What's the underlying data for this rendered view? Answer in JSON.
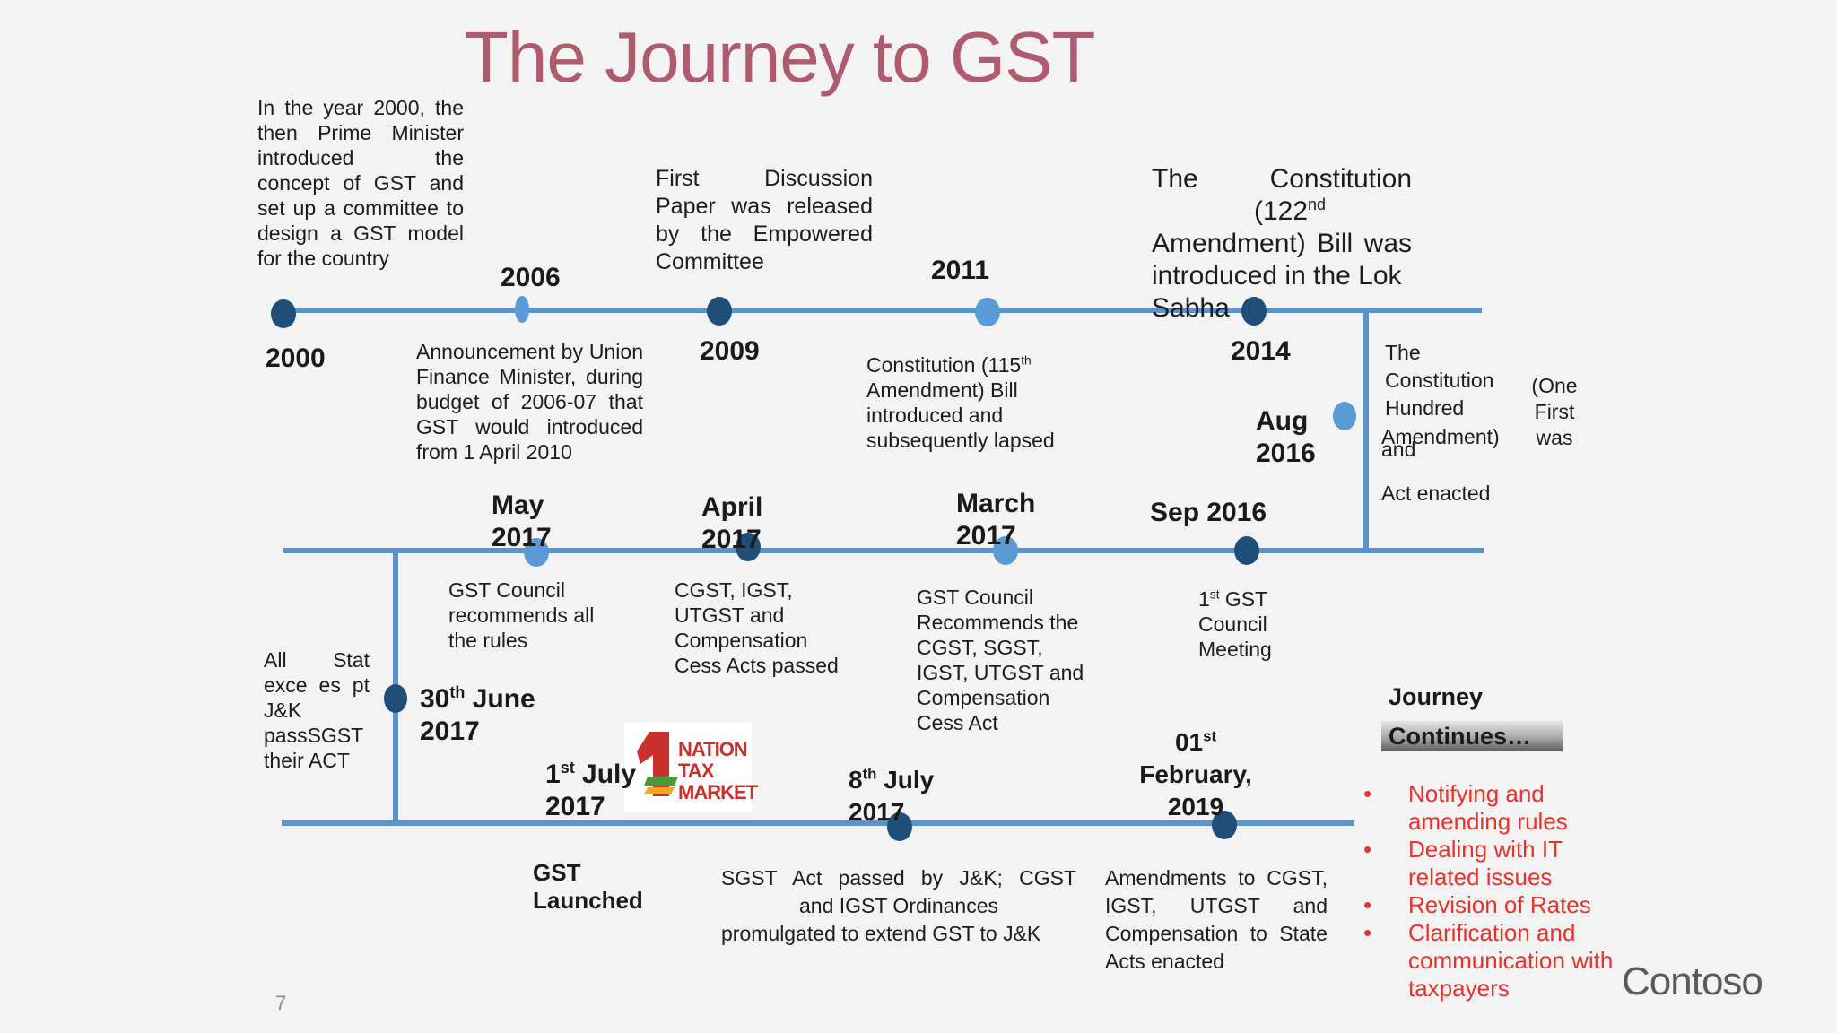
{
  "title": "The Journey to GST",
  "page_number": "7",
  "logo": "Contoso",
  "event_logo_text": [
    "NATION",
    "TAX",
    "MARKET"
  ],
  "colors": {
    "line": "#5b93cf",
    "dot_dark": "#1f4e79",
    "dot_light": "#5b9bd5",
    "title": "#b05a6e",
    "bullet": "#e8322a"
  },
  "row1": {
    "d2000": "2000",
    "d2006": "2006",
    "d2009": "2009",
    "d2011": "2011",
    "d2014": "2014",
    "desc2000": "In the year 2000, the then Prime Minister introduced the concept of GST and set up a committee to design a GST model for the country",
    "desc2006": "Announcement by Union Finance Minister, during budget of 2006-07 that GST would introduced from 1 April 2010",
    "desc2009": "First Discussion Paper was released by the Empowered Committee",
    "desc2011": "Constitution (115th Amendment) Bill introduced and subsequently lapsed",
    "desc2014": "The Constitution (122nd Amendment) Bill was introduced in the Lok Sabha",
    "aug2016_date": "Aug 2016",
    "aug2016_desc_a": "The Constitution Hundred",
    "aug2016_desc_b": "(One First was",
    "aug2016_desc_c": "Amendment) and",
    "aug2016_desc_d": "Act enacted"
  },
  "row2": {
    "may2017": "May 2017",
    "april2017": "April 2017",
    "march2017": "March 2017",
    "sep2016": "Sep 2016",
    "may2017_desc": "GST Council recommends all the rules",
    "april2017_desc": "CGST, IGST, UTGST and Compensation Cess Acts passed",
    "march2017_desc": "GST Council Recommends the CGST, SGST, IGST, UTGST and Compensation Cess Act",
    "sep2016_desc": "1st GST Council Meeting"
  },
  "row3": {
    "all_states_a": "All Stat exce es pt J&K",
    "all_states_b": "passSGST their ACT",
    "june2017": "30th June 2017",
    "july1_2017": "1st July 2017",
    "july8_2017": "8th July 2017",
    "feb2019": "01st February, 2019",
    "gst_launched": "GST Launched",
    "july8_desc": "SGST Act passed by J&K; CGST and IGST Ordinances promulgated to extend GST to J&K",
    "feb2019_desc": "Amendments to CGST, IGST, UTGST and Compensation to State Acts enacted"
  },
  "journey": {
    "heading": "Journey",
    "heading2": "Continues…",
    "items": [
      "Notifying and amending rules",
      "Dealing with IT related issues",
      "Revision of Rates",
      "Clarification and communication with taxpayers"
    ]
  }
}
